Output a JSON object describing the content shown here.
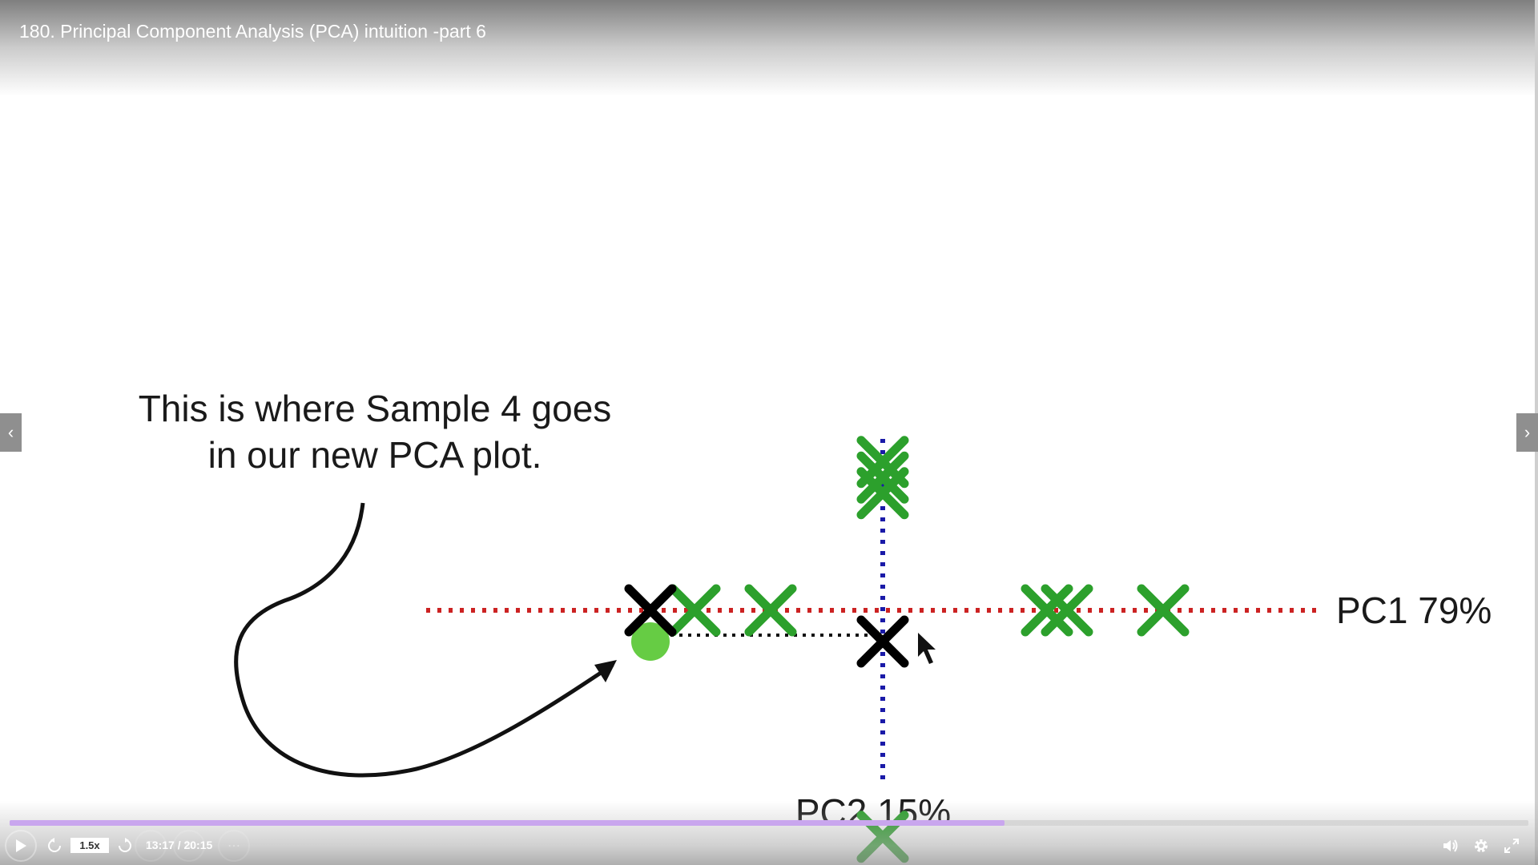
{
  "video": {
    "title": "180. Principal Component Analysis (PCA) intuition -part 6"
  },
  "slide": {
    "caption_line1": "This is where Sample 4 goes",
    "caption_line2": "in our new PCA plot.",
    "pc1_label": "PC1 79%",
    "pc2_label": "PC2 15%"
  },
  "chart_data": {
    "type": "scatter",
    "xlabel": "PC1 79%",
    "ylabel": "PC2 15%",
    "axis_colors": {
      "pc1": "#cc2222",
      "pc2": "#1a1aa8"
    },
    "series": [
      {
        "color": "#2ca02c",
        "points": [
          [
            -2.35,
            0
          ],
          [
            -1.4,
            0
          ],
          [
            2.05,
            0
          ],
          [
            2.3,
            0
          ],
          [
            3.5,
            0
          ],
          [
            0,
            0.95
          ],
          [
            0,
            0.85
          ],
          [
            0,
            0.75
          ],
          [
            0,
            -1.45
          ]
        ]
      },
      {
        "color": "#000000",
        "points": [
          [
            -2.9,
            0
          ],
          [
            0,
            -0.2
          ]
        ]
      }
    ],
    "highlight": {
      "color": "#66cc44",
      "point": [
        -2.9,
        -0.2
      ],
      "caption": "Sample 4"
    }
  },
  "progress": {
    "fraction": 0.655
  },
  "controls": {
    "play_icon": "play-icon",
    "speed": "1.5x",
    "time": "13:17 / 20:15",
    "rewind_icon": "rewind-icon",
    "forward_icon": "forward-icon",
    "volume_icon": "volume-icon",
    "settings_icon": "gear-icon",
    "fullscreen_icon": "fullscreen-icon"
  },
  "colors": {
    "progress_fill": "#c9a6ee",
    "marker_green": "#2ca02c",
    "highlight_green": "#66cc44"
  }
}
